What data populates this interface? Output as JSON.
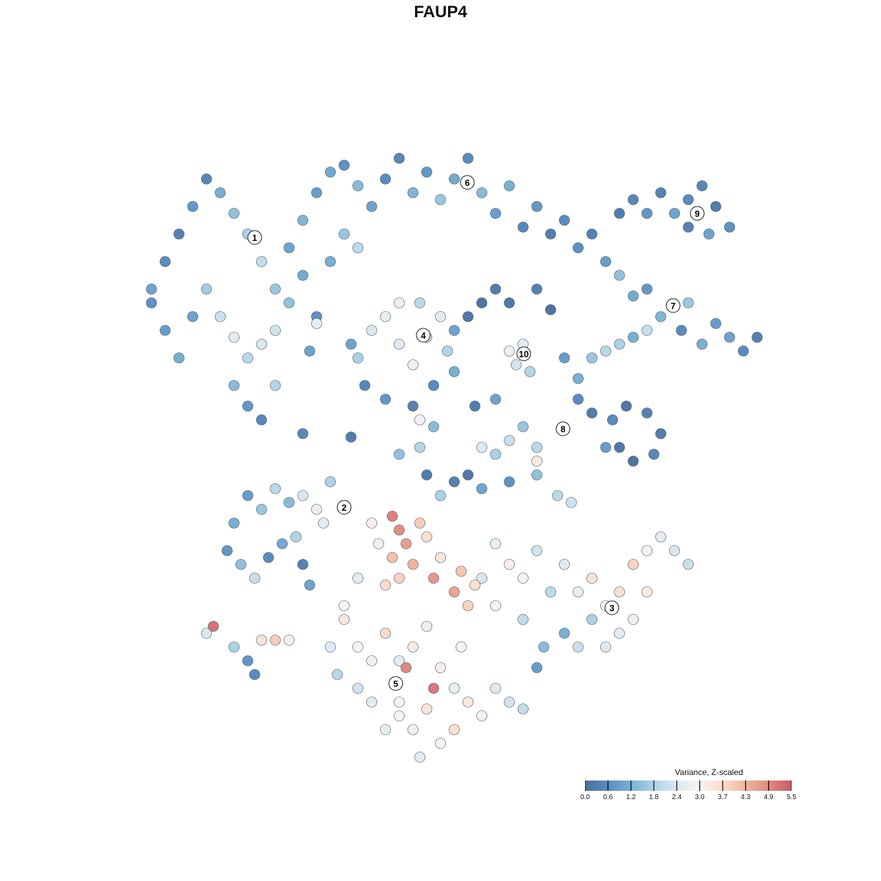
{
  "chart_data": {
    "type": "scatter",
    "title": "FAUP4",
    "xlabel": "",
    "ylabel": "",
    "grid": false,
    "axes_visible": false,
    "legend": {
      "title": "Variance, Z-scaled",
      "placement": "bottom-right",
      "ticks": [
        "0.0",
        "0.6",
        "1.2",
        "1.8",
        "2.4",
        "3.0",
        "3.7",
        "4.3",
        "4.9",
        "5.5"
      ],
      "range": [
        0.0,
        5.5
      ],
      "colors": [
        "#4d6f99",
        "#5a8cc0",
        "#7ab0d4",
        "#aed3e5",
        "#dbe9f1",
        "#f7f4f2",
        "#fbdccb",
        "#f0b59b",
        "#e08a80",
        "#c85a68"
      ]
    },
    "clusters": [
      {
        "label": "1",
        "x": -27,
        "y": 29.5
      },
      {
        "label": "2",
        "x": -14,
        "y": -9.7
      },
      {
        "label": "3",
        "x": 24.9,
        "y": -24.3
      },
      {
        "label": "4",
        "x": -2.5,
        "y": 15.3
      },
      {
        "label": "5",
        "x": -6.5,
        "y": -35.3
      },
      {
        "label": "6",
        "x": 3.9,
        "y": 37.5
      },
      {
        "label": "7",
        "x": 33.8,
        "y": 19.6
      },
      {
        "label": "8",
        "x": 17.8,
        "y": 1.7
      },
      {
        "label": "9",
        "x": 37.3,
        "y": 33
      },
      {
        "label": "10",
        "x": 12.1,
        "y": 12.6
      }
    ],
    "points": [
      [
        -42,
        22,
        1.0
      ],
      [
        -40,
        26,
        0.6
      ],
      [
        -38,
        30,
        0.4
      ],
      [
        -36,
        34,
        0.8
      ],
      [
        -34,
        38,
        0.5
      ],
      [
        -32,
        36,
        1.2
      ],
      [
        -30,
        33,
        1.5
      ],
      [
        -28,
        30,
        1.8
      ],
      [
        -26,
        26,
        2.1
      ],
      [
        -24,
        22,
        1.6
      ],
      [
        -22,
        28,
        1.0
      ],
      [
        -20,
        32,
        1.3
      ],
      [
        -18,
        36,
        0.9
      ],
      [
        -16,
        39,
        1.1
      ],
      [
        -14,
        40,
        0.7
      ],
      [
        -12,
        37,
        1.4
      ],
      [
        -10,
        34,
        1.0
      ],
      [
        -8,
        38,
        0.6
      ],
      [
        -6,
        41,
        0.5
      ],
      [
        -4,
        36,
        1.3
      ],
      [
        -2,
        39,
        0.8
      ],
      [
        0,
        35,
        1.6
      ],
      [
        2,
        38,
        1.1
      ],
      [
        4,
        41,
        0.6
      ],
      [
        6,
        36,
        1.4
      ],
      [
        8,
        33,
        0.9
      ],
      [
        10,
        37,
        1.2
      ],
      [
        12,
        31,
        0.5
      ],
      [
        14,
        34,
        0.8
      ],
      [
        16,
        30,
        0.3
      ],
      [
        18,
        32,
        0.6
      ],
      [
        -34,
        22,
        1.7
      ],
      [
        -32,
        18,
        2.2
      ],
      [
        -30,
        15,
        2.6
      ],
      [
        -28,
        12,
        2.0
      ],
      [
        -26,
        14,
        2.4
      ],
      [
        -30,
        8,
        1.4
      ],
      [
        -28,
        5,
        0.8
      ],
      [
        -26,
        3,
        0.5
      ],
      [
        -24,
        8,
        1.9
      ],
      [
        -24,
        16,
        2.3
      ],
      [
        -36,
        18,
        1.0
      ],
      [
        -38,
        12,
        1.2
      ],
      [
        -22,
        20,
        1.5
      ],
      [
        -20,
        24,
        1.1
      ],
      [
        -18,
        18,
        0.7
      ],
      [
        -16,
        26,
        1.2
      ],
      [
        -14,
        30,
        1.6
      ],
      [
        -12,
        28,
        2.0
      ],
      [
        -40,
        16,
        0.9
      ],
      [
        -42,
        20,
        0.7
      ],
      [
        -12,
        12,
        1.8
      ],
      [
        -10,
        16,
        2.4
      ],
      [
        -8,
        18,
        2.7
      ],
      [
        -6,
        14,
        2.5
      ],
      [
        -4,
        11,
        2.9
      ],
      [
        -2,
        15,
        2.2
      ],
      [
        0,
        18,
        2.6
      ],
      [
        1,
        13,
        1.9
      ],
      [
        2,
        10,
        1.2
      ],
      [
        -1,
        8,
        0.6
      ],
      [
        -4,
        5,
        0.4
      ],
      [
        -8,
        6,
        0.8
      ],
      [
        -11,
        8,
        0.5
      ],
      [
        -13,
        14,
        1.0
      ],
      [
        2,
        16,
        1.0
      ],
      [
        -6,
        20,
        2.8
      ],
      [
        -3,
        20,
        2.0
      ],
      [
        20,
        28,
        0.7
      ],
      [
        22,
        30,
        0.4
      ],
      [
        24,
        26,
        0.9
      ],
      [
        26,
        24,
        1.5
      ],
      [
        28,
        21,
        1.1
      ],
      [
        30,
        22,
        0.8
      ],
      [
        32,
        18,
        1.3
      ],
      [
        35,
        16,
        0.6
      ],
      [
        38,
        14,
        1.2
      ],
      [
        40,
        17,
        0.9
      ],
      [
        42,
        15,
        1.0
      ],
      [
        44,
        13,
        0.6
      ],
      [
        46,
        15,
        0.4
      ],
      [
        36,
        20,
        1.6
      ],
      [
        30,
        16,
        2.2
      ],
      [
        26,
        33,
        0.3
      ],
      [
        28,
        35,
        0.5
      ],
      [
        30,
        33,
        0.8
      ],
      [
        32,
        36,
        0.4
      ],
      [
        34,
        33,
        1.0
      ],
      [
        36,
        35,
        0.6
      ],
      [
        38,
        37,
        0.5
      ],
      [
        40,
        34,
        0.3
      ],
      [
        42,
        31,
        0.7
      ],
      [
        39,
        30,
        1.0
      ],
      [
        36,
        31,
        0.4
      ],
      [
        4,
        18,
        0.2
      ],
      [
        6,
        20,
        0.1
      ],
      [
        8,
        22,
        0.3
      ],
      [
        10,
        20,
        0.2
      ],
      [
        14,
        22,
        0.4
      ],
      [
        16,
        19,
        0.1
      ],
      [
        12,
        14,
        2.6
      ],
      [
        11,
        11,
        2.3
      ],
      [
        13,
        10,
        1.9
      ],
      [
        10,
        13,
        2.8
      ],
      [
        18,
        12,
        0.9
      ],
      [
        20,
        9,
        1.2
      ],
      [
        22,
        12,
        1.6
      ],
      [
        24,
        13,
        2.0
      ],
      [
        26,
        14,
        1.8
      ],
      [
        28,
        15,
        1.2
      ],
      [
        20,
        6,
        0.6
      ],
      [
        22,
        4,
        0.3
      ],
      [
        25,
        3,
        0.6
      ],
      [
        27,
        5,
        0.2
      ],
      [
        30,
        4,
        0.4
      ],
      [
        32,
        1,
        0.3
      ],
      [
        26,
        -1,
        0.2
      ],
      [
        28,
        -3,
        0.1
      ],
      [
        31,
        -2,
        0.5
      ],
      [
        24,
        -1,
        0.9
      ],
      [
        12,
        2,
        1.6
      ],
      [
        10,
        0,
        2.2
      ],
      [
        8,
        -2,
        1.8
      ],
      [
        6,
        -1,
        2.5
      ],
      [
        14,
        -1,
        2.0
      ],
      [
        4,
        -5,
        0.2
      ],
      [
        2,
        -6,
        0.4
      ],
      [
        -2,
        -5,
        0.3
      ],
      [
        0,
        -8,
        1.8
      ],
      [
        6,
        -7,
        1.0
      ],
      [
        10,
        -6,
        0.7
      ],
      [
        14,
        -5,
        1.5
      ],
      [
        17,
        -8,
        2.0
      ],
      [
        19,
        -9,
        2.3
      ],
      [
        14,
        -3,
        3.3
      ],
      [
        -30,
        -12,
        1.2
      ],
      [
        -28,
        -8,
        0.9
      ],
      [
        -26,
        -10,
        1.6
      ],
      [
        -24,
        -7,
        2.0
      ],
      [
        -22,
        -9,
        1.4
      ],
      [
        -20,
        -8,
        2.4
      ],
      [
        -18,
        -10,
        2.8
      ],
      [
        -16,
        -6,
        1.8
      ],
      [
        -31,
        -16,
        0.8
      ],
      [
        -29,
        -18,
        1.5
      ],
      [
        -27,
        -20,
        2.2
      ],
      [
        -25,
        -17,
        0.6
      ],
      [
        -23,
        -15,
        1.1
      ],
      [
        -21,
        -14,
        1.9
      ],
      [
        -20,
        -18,
        0.4
      ],
      [
        -19,
        -21,
        1.0
      ],
      [
        -17,
        -12,
        2.6
      ],
      [
        -33,
        -27,
        5.2
      ],
      [
        -34,
        -28,
        2.4
      ],
      [
        -30,
        -30,
        1.8
      ],
      [
        -28,
        -32,
        0.8
      ],
      [
        -26,
        -29,
        3.5
      ],
      [
        -24,
        -29,
        3.9
      ],
      [
        -27,
        -34,
        0.6
      ],
      [
        -22,
        -29,
        3.2
      ],
      [
        -7,
        -11,
        5.0
      ],
      [
        -6,
        -13,
        4.8
      ],
      [
        -5,
        -15,
        4.6
      ],
      [
        -7,
        -17,
        4.1
      ],
      [
        -4,
        -18,
        4.3
      ],
      [
        -6,
        -20,
        3.8
      ],
      [
        -3,
        -12,
        3.9
      ],
      [
        -2,
        -14,
        3.6
      ],
      [
        0,
        -17,
        3.4
      ],
      [
        -1,
        -20,
        4.7
      ],
      [
        2,
        -22,
        4.5
      ],
      [
        3,
        -19,
        4.0
      ],
      [
        5,
        -21,
        3.6
      ],
      [
        4,
        -24,
        3.8
      ],
      [
        -8,
        -21,
        3.7
      ],
      [
        -9,
        -15,
        2.9
      ],
      [
        -10,
        -12,
        3.2
      ],
      [
        -12,
        -20,
        2.6
      ],
      [
        -14,
        -24,
        3.0
      ],
      [
        8,
        -15,
        2.8
      ],
      [
        10,
        -18,
        3.2
      ],
      [
        12,
        -20,
        2.9
      ],
      [
        14,
        -16,
        2.3
      ],
      [
        16,
        -22,
        2.0
      ],
      [
        18,
        -18,
        2.5
      ],
      [
        20,
        -22,
        2.7
      ],
      [
        22,
        -20,
        3.5
      ],
      [
        24,
        -24,
        3.0
      ],
      [
        26,
        -22,
        3.6
      ],
      [
        28,
        -18,
        3.8
      ],
      [
        30,
        -16,
        3.1
      ],
      [
        32,
        -14,
        2.6
      ],
      [
        34,
        -16,
        2.4
      ],
      [
        36,
        -18,
        2.2
      ],
      [
        30,
        -22,
        3.3
      ],
      [
        28,
        -26,
        2.9
      ],
      [
        26,
        -28,
        2.6
      ],
      [
        22,
        -26,
        1.8
      ],
      [
        18,
        -28,
        1.2
      ],
      [
        15,
        -30,
        1.4
      ],
      [
        14,
        -33,
        0.9
      ],
      [
        20,
        -30,
        2.2
      ],
      [
        24,
        -30,
        2.5
      ],
      [
        12,
        -26,
        2.1
      ],
      [
        6,
        -20,
        2.4
      ],
      [
        8,
        -24,
        3.0
      ],
      [
        3,
        -30,
        3.1
      ],
      [
        -14,
        -26,
        3.4
      ],
      [
        -12,
        -30,
        3.1
      ],
      [
        -10,
        -32,
        2.9
      ],
      [
        -8,
        -28,
        3.7
      ],
      [
        -6,
        -32,
        2.6
      ],
      [
        -4,
        -30,
        3.3
      ],
      [
        -2,
        -27,
        2.8
      ],
      [
        0,
        -33,
        3.2
      ],
      [
        2,
        -36,
        2.7
      ],
      [
        4,
        -38,
        3.4
      ],
      [
        6,
        -40,
        2.9
      ],
      [
        8,
        -36,
        2.5
      ],
      [
        10,
        -38,
        2.3
      ],
      [
        12,
        -39,
        2.1
      ],
      [
        -2,
        -39,
        3.5
      ],
      [
        -4,
        -42,
        2.8
      ],
      [
        -6,
        -40,
        3.1
      ],
      [
        -8,
        -42,
        2.7
      ],
      [
        -10,
        -38,
        2.6
      ],
      [
        -12,
        -36,
        2.3
      ],
      [
        -15,
        -34,
        2.0
      ],
      [
        -16,
        -30,
        2.5
      ],
      [
        0,
        -44,
        3.0
      ],
      [
        2,
        -42,
        3.6
      ],
      [
        -1,
        -36,
        5.1
      ],
      [
        -5,
        -33,
        4.9
      ],
      [
        -6,
        -38,
        3.0
      ],
      [
        -3,
        -46,
        2.6
      ],
      [
        -20,
        1,
        0.5
      ],
      [
        -13,
        0.5,
        0.3
      ],
      [
        -3,
        -1,
        1.9
      ],
      [
        -6,
        -2,
        1.5
      ],
      [
        -3,
        3,
        2.9
      ],
      [
        5,
        5,
        0.3
      ],
      [
        8,
        6,
        1.0
      ],
      [
        -1,
        2,
        1.4
      ],
      [
        -18,
        17,
        2.7
      ],
      [
        -19,
        13,
        1.0
      ]
    ]
  }
}
